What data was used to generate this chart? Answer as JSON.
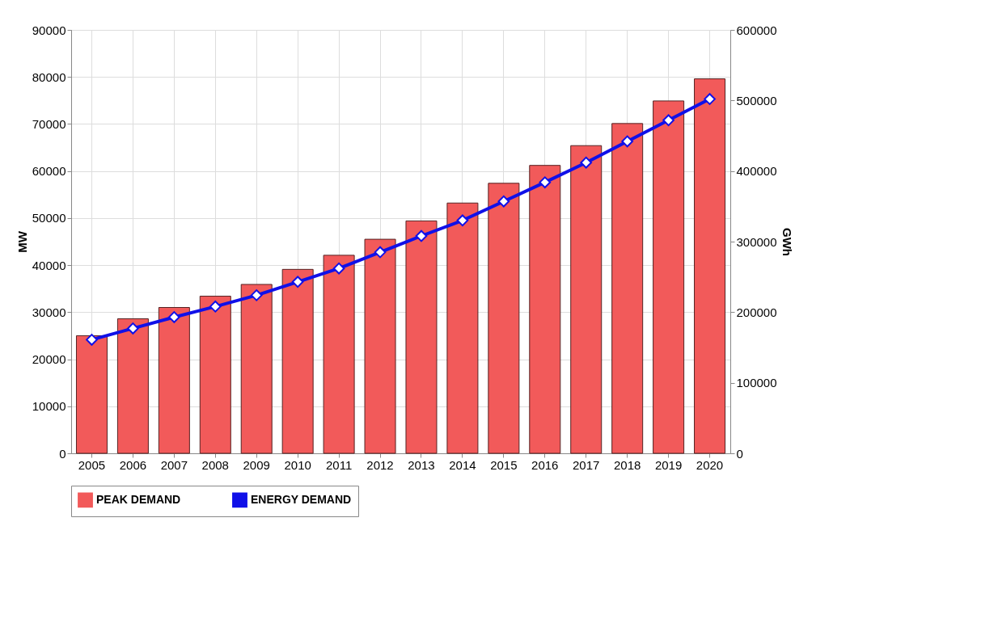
{
  "chart_data": {
    "type": "bar",
    "categories": [
      "2005",
      "2006",
      "2007",
      "2008",
      "2009",
      "2010",
      "2011",
      "2012",
      "2013",
      "2014",
      "2015",
      "2016",
      "2017",
      "2018",
      "2019",
      "2020"
    ],
    "ylabel": "MW",
    "y2label": "GWh",
    "ylim": [
      0,
      90000
    ],
    "yticks": [
      0,
      10000,
      20000,
      30000,
      40000,
      50000,
      60000,
      70000,
      80000,
      90000
    ],
    "y2lim": [
      0,
      600000
    ],
    "y2ticks": [
      0,
      100000,
      200000,
      300000,
      400000,
      500000,
      600000
    ],
    "series": [
      {
        "name": "PEAK DEMAND",
        "color": "#f25a5a",
        "values": [
          25000,
          28600,
          31000,
          33400,
          35900,
          39100,
          42100,
          45500,
          49400,
          53200,
          57400,
          61200,
          65400,
          70100,
          74900,
          79600
        ]
      },
      {
        "name": "ENERGY DEMAND",
        "type": "line",
        "axis": "y2",
        "color": "#1010e8",
        "marker": "diamond",
        "values": [
          161000,
          177000,
          193000,
          208000,
          224000,
          243000,
          262000,
          285000,
          308000,
          330000,
          357000,
          384000,
          412000,
          442000,
          472000,
          502000
        ]
      }
    ],
    "grid": true,
    "legend": "bottom"
  }
}
